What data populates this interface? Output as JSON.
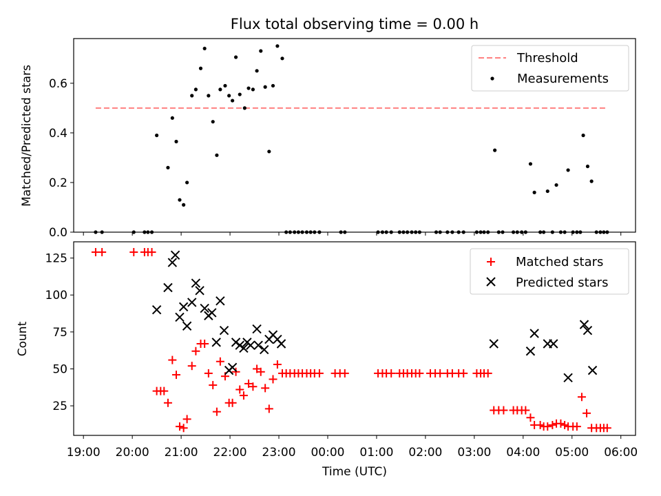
{
  "title": "Flux total observing time = 0.00 h",
  "x_axis": {
    "label": "Time (UTC)",
    "range_hours": [
      18.8,
      30.3
    ],
    "ticks": [
      {
        "h": 19,
        "label": "19:00"
      },
      {
        "h": 20,
        "label": "20:00"
      },
      {
        "h": 21,
        "label": "21:00"
      },
      {
        "h": 22,
        "label": "22:00"
      },
      {
        "h": 23,
        "label": "23:00"
      },
      {
        "h": 24,
        "label": "00:00"
      },
      {
        "h": 25,
        "label": "01:00"
      },
      {
        "h": 26,
        "label": "02:00"
      },
      {
        "h": 27,
        "label": "03:00"
      },
      {
        "h": 28,
        "label": "04:00"
      },
      {
        "h": 29,
        "label": "05:00"
      },
      {
        "h": 30,
        "label": "06:00"
      }
    ]
  },
  "chart_data": [
    {
      "type": "scatter",
      "panel": "top",
      "ylabel": "Matched/Predicted stars",
      "ylim": [
        0,
        0.78
      ],
      "yticks": [
        0.0,
        0.2,
        0.4,
        0.6
      ],
      "ytick_labels": [
        "0.0",
        "0.2",
        "0.4",
        "0.6"
      ],
      "legend_position": "upper right",
      "threshold": {
        "name": "Threshold",
        "value": 0.5,
        "x_start": 19.25,
        "x_end": 29.72,
        "color": "#ff8080"
      },
      "series": [
        {
          "name": "Measurements",
          "color": "#000000",
          "points": [
            [
              19.25,
              0.0
            ],
            [
              19.38,
              0.0
            ],
            [
              20.03,
              0.0
            ],
            [
              20.25,
              0.0
            ],
            [
              20.32,
              0.0
            ],
            [
              20.4,
              0.0
            ],
            [
              20.5,
              0.39
            ],
            [
              20.73,
              0.26
            ],
            [
              20.82,
              0.46
            ],
            [
              20.9,
              0.365
            ],
            [
              20.97,
              0.13
            ],
            [
              21.05,
              0.11
            ],
            [
              21.12,
              0.2
            ],
            [
              21.22,
              0.55
            ],
            [
              21.3,
              0.575
            ],
            [
              21.4,
              0.66
            ],
            [
              21.48,
              0.74
            ],
            [
              21.56,
              0.55
            ],
            [
              21.65,
              0.445
            ],
            [
              21.73,
              0.31
            ],
            [
              21.8,
              0.575
            ],
            [
              21.9,
              0.59
            ],
            [
              21.98,
              0.55
            ],
            [
              22.05,
              0.53
            ],
            [
              22.12,
              0.705
            ],
            [
              22.2,
              0.555
            ],
            [
              22.3,
              0.5
            ],
            [
              22.38,
              0.58
            ],
            [
              22.47,
              0.575
            ],
            [
              22.55,
              0.65
            ],
            [
              22.63,
              0.73
            ],
            [
              22.72,
              0.585
            ],
            [
              22.8,
              0.325
            ],
            [
              22.88,
              0.59
            ],
            [
              22.97,
              0.75
            ],
            [
              23.07,
              0.7
            ],
            [
              23.15,
              0.0
            ],
            [
              23.23,
              0.0
            ],
            [
              23.32,
              0.0
            ],
            [
              23.4,
              0.0
            ],
            [
              23.48,
              0.0
            ],
            [
              23.57,
              0.0
            ],
            [
              23.65,
              0.0
            ],
            [
              23.73,
              0.0
            ],
            [
              23.83,
              0.0
            ],
            [
              24.27,
              0.0
            ],
            [
              24.35,
              0.0
            ],
            [
              25.03,
              0.0
            ],
            [
              25.12,
              0.0
            ],
            [
              25.2,
              0.0
            ],
            [
              25.3,
              0.0
            ],
            [
              25.47,
              0.0
            ],
            [
              25.55,
              0.0
            ],
            [
              25.63,
              0.0
            ],
            [
              25.72,
              0.0
            ],
            [
              25.8,
              0.0
            ],
            [
              25.88,
              0.0
            ],
            [
              26.22,
              0.0
            ],
            [
              26.3,
              0.0
            ],
            [
              26.45,
              0.0
            ],
            [
              26.55,
              0.0
            ],
            [
              26.68,
              0.0
            ],
            [
              26.78,
              0.0
            ],
            [
              27.05,
              0.0
            ],
            [
              27.13,
              0.0
            ],
            [
              27.2,
              0.0
            ],
            [
              27.28,
              0.0
            ],
            [
              27.42,
              0.33
            ],
            [
              27.5,
              0.0
            ],
            [
              27.58,
              0.0
            ],
            [
              27.8,
              0.0
            ],
            [
              27.88,
              0.0
            ],
            [
              27.97,
              0.0
            ],
            [
              28.05,
              0.0
            ],
            [
              28.15,
              0.275
            ],
            [
              28.23,
              0.16
            ],
            [
              28.35,
              0.0
            ],
            [
              28.42,
              0.0
            ],
            [
              28.5,
              0.165
            ],
            [
              28.6,
              0.0
            ],
            [
              28.68,
              0.19
            ],
            [
              28.77,
              0.0
            ],
            [
              28.85,
              0.0
            ],
            [
              28.92,
              0.25
            ],
            [
              29.02,
              0.0
            ],
            [
              29.1,
              0.0
            ],
            [
              29.17,
              0.0
            ],
            [
              29.23,
              0.39
            ],
            [
              29.32,
              0.265
            ],
            [
              29.4,
              0.205
            ],
            [
              29.5,
              0.0
            ],
            [
              29.58,
              0.0
            ],
            [
              29.65,
              0.0
            ],
            [
              29.72,
              0.0
            ]
          ]
        }
      ]
    },
    {
      "type": "scatter",
      "panel": "bottom",
      "ylabel": "Count",
      "ylim": [
        5,
        136
      ],
      "yticks": [
        25,
        50,
        75,
        100,
        125
      ],
      "ytick_labels": [
        "25",
        "50",
        "75",
        "100",
        "125"
      ],
      "legend_position": "upper right",
      "series": [
        {
          "name": "Matched stars",
          "color": "#ff0000",
          "marker": "+",
          "points": [
            [
              19.25,
              129
            ],
            [
              19.38,
              129
            ],
            [
              20.03,
              129
            ],
            [
              20.25,
              129
            ],
            [
              20.32,
              129
            ],
            [
              20.4,
              129
            ],
            [
              20.5,
              35
            ],
            [
              20.58,
              35
            ],
            [
              20.65,
              35
            ],
            [
              20.73,
              27
            ],
            [
              20.82,
              56
            ],
            [
              20.9,
              46
            ],
            [
              20.97,
              11
            ],
            [
              21.05,
              10
            ],
            [
              21.12,
              16
            ],
            [
              21.22,
              52
            ],
            [
              21.3,
              62
            ],
            [
              21.4,
              67
            ],
            [
              21.48,
              67
            ],
            [
              21.56,
              47
            ],
            [
              21.65,
              39
            ],
            [
              21.73,
              21
            ],
            [
              21.8,
              55
            ],
            [
              21.9,
              45
            ],
            [
              21.98,
              27
            ],
            [
              22.05,
              27
            ],
            [
              22.12,
              48
            ],
            [
              22.2,
              36
            ],
            [
              22.28,
              32
            ],
            [
              22.38,
              40
            ],
            [
              22.47,
              38
            ],
            [
              22.55,
              50
            ],
            [
              22.63,
              48
            ],
            [
              22.72,
              37
            ],
            [
              22.8,
              23
            ],
            [
              22.88,
              43
            ],
            [
              22.97,
              53
            ],
            [
              23.07,
              47
            ],
            [
              23.15,
              47
            ],
            [
              23.23,
              47
            ],
            [
              23.32,
              47
            ],
            [
              23.4,
              47
            ],
            [
              23.48,
              47
            ],
            [
              23.57,
              47
            ],
            [
              23.65,
              47
            ],
            [
              23.73,
              47
            ],
            [
              23.83,
              47
            ],
            [
              24.15,
              47
            ],
            [
              24.25,
              47
            ],
            [
              24.35,
              47
            ],
            [
              25.03,
              47
            ],
            [
              25.12,
              47
            ],
            [
              25.2,
              47
            ],
            [
              25.3,
              47
            ],
            [
              25.47,
              47
            ],
            [
              25.55,
              47
            ],
            [
              25.63,
              47
            ],
            [
              25.72,
              47
            ],
            [
              25.8,
              47
            ],
            [
              25.88,
              47
            ],
            [
              26.1,
              47
            ],
            [
              26.2,
              47
            ],
            [
              26.3,
              47
            ],
            [
              26.45,
              47
            ],
            [
              26.55,
              47
            ],
            [
              26.68,
              47
            ],
            [
              26.78,
              47
            ],
            [
              27.05,
              47
            ],
            [
              27.13,
              47
            ],
            [
              27.2,
              47
            ],
            [
              27.28,
              47
            ],
            [
              27.4,
              22
            ],
            [
              27.5,
              22
            ],
            [
              27.6,
              22
            ],
            [
              27.8,
              22
            ],
            [
              27.88,
              22
            ],
            [
              27.97,
              22
            ],
            [
              28.05,
              22
            ],
            [
              28.15,
              17
            ],
            [
              28.23,
              12
            ],
            [
              28.35,
              12
            ],
            [
              28.42,
              11
            ],
            [
              28.5,
              11
            ],
            [
              28.6,
              12
            ],
            [
              28.68,
              13
            ],
            [
              28.77,
              13
            ],
            [
              28.85,
              12
            ],
            [
              28.92,
              11
            ],
            [
              29.02,
              11
            ],
            [
              29.1,
              11
            ],
            [
              29.2,
              31
            ],
            [
              29.3,
              20
            ],
            [
              29.4,
              10
            ],
            [
              29.5,
              10
            ],
            [
              29.58,
              10
            ],
            [
              29.65,
              10
            ],
            [
              29.72,
              10
            ]
          ]
        },
        {
          "name": "Predicted stars",
          "color": "#000000",
          "marker": "x",
          "points": [
            [
              20.5,
              90
            ],
            [
              20.73,
              105
            ],
            [
              20.82,
              122
            ],
            [
              20.88,
              127
            ],
            [
              20.97,
              85
            ],
            [
              21.05,
              92
            ],
            [
              21.12,
              79
            ],
            [
              21.22,
              95
            ],
            [
              21.3,
              108
            ],
            [
              21.38,
              103
            ],
            [
              21.48,
              91
            ],
            [
              21.56,
              86
            ],
            [
              21.63,
              88
            ],
            [
              21.72,
              68
            ],
            [
              21.8,
              96
            ],
            [
              21.88,
              76
            ],
            [
              21.98,
              49
            ],
            [
              22.05,
              51
            ],
            [
              22.12,
              68
            ],
            [
              22.2,
              66
            ],
            [
              22.28,
              64
            ],
            [
              22.35,
              68
            ],
            [
              22.42,
              66
            ],
            [
              22.55,
              77
            ],
            [
              22.58,
              66
            ],
            [
              22.7,
              63
            ],
            [
              22.8,
              70
            ],
            [
              22.88,
              73
            ],
            [
              22.97,
              70
            ],
            [
              23.05,
              67
            ],
            [
              27.4,
              67
            ],
            [
              28.15,
              62
            ],
            [
              28.23,
              74
            ],
            [
              28.5,
              67
            ],
            [
              28.62,
              67
            ],
            [
              28.92,
              44
            ],
            [
              29.25,
              80
            ],
            [
              29.32,
              76
            ],
            [
              29.42,
              49
            ]
          ]
        }
      ]
    }
  ]
}
